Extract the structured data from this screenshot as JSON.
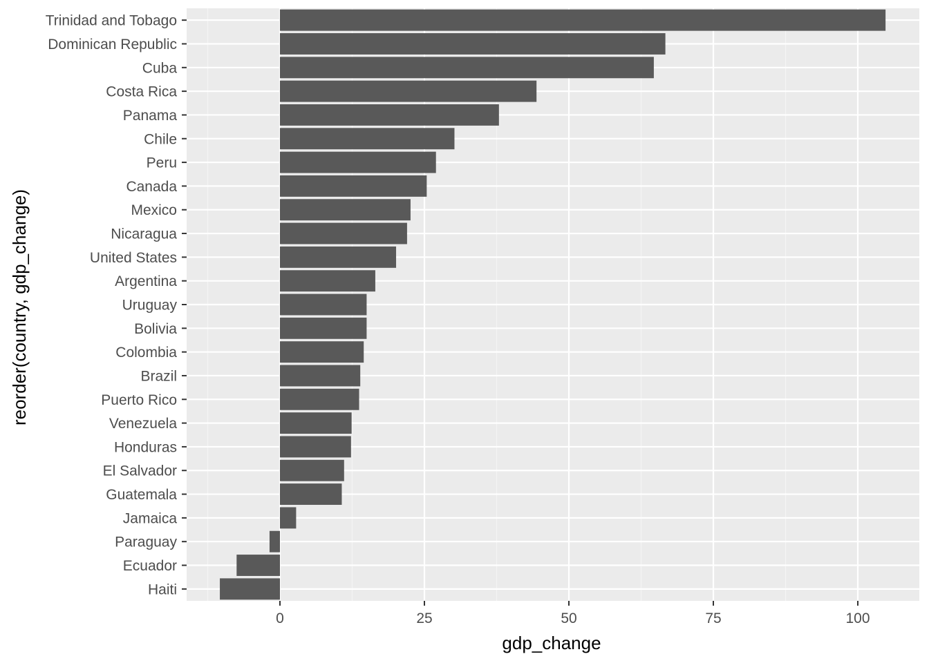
{
  "chart_data": {
    "type": "bar",
    "orientation": "horizontal",
    "xlabel": "gdp_change",
    "ylabel": "reorder(country, gdp_change)",
    "xlim": [
      -16,
      110
    ],
    "x_ticks": [
      0,
      25,
      50,
      75,
      100
    ],
    "grid": true,
    "categories": [
      "Trinidad and Tobago",
      "Dominican Republic",
      "Cuba",
      "Costa Rica",
      "Panama",
      "Chile",
      "Peru",
      "Canada",
      "Mexico",
      "Nicaragua",
      "United States",
      "Argentina",
      "Uruguay",
      "Bolivia",
      "Colombia",
      "Brazil",
      "Puerto Rico",
      "Venezuela",
      "Honduras",
      "El Salvador",
      "Guatemala",
      "Jamaica",
      "Paraguay",
      "Ecuador",
      "Haiti"
    ],
    "values": [
      104.8,
      66.7,
      64.7,
      44.4,
      37.9,
      30.2,
      27.0,
      25.4,
      22.6,
      22.0,
      20.1,
      16.5,
      15.0,
      15.0,
      14.5,
      13.9,
      13.7,
      12.4,
      12.3,
      11.1,
      10.7,
      2.8,
      -1.8,
      -7.5,
      -10.4
    ],
    "colors": {
      "bar": "#595959",
      "panel": "#ebebeb",
      "grid_major": "#ffffff",
      "grid_minor": "#f4f4f4",
      "tick": "#333333",
      "tick_label": "#4d4d4d"
    }
  }
}
